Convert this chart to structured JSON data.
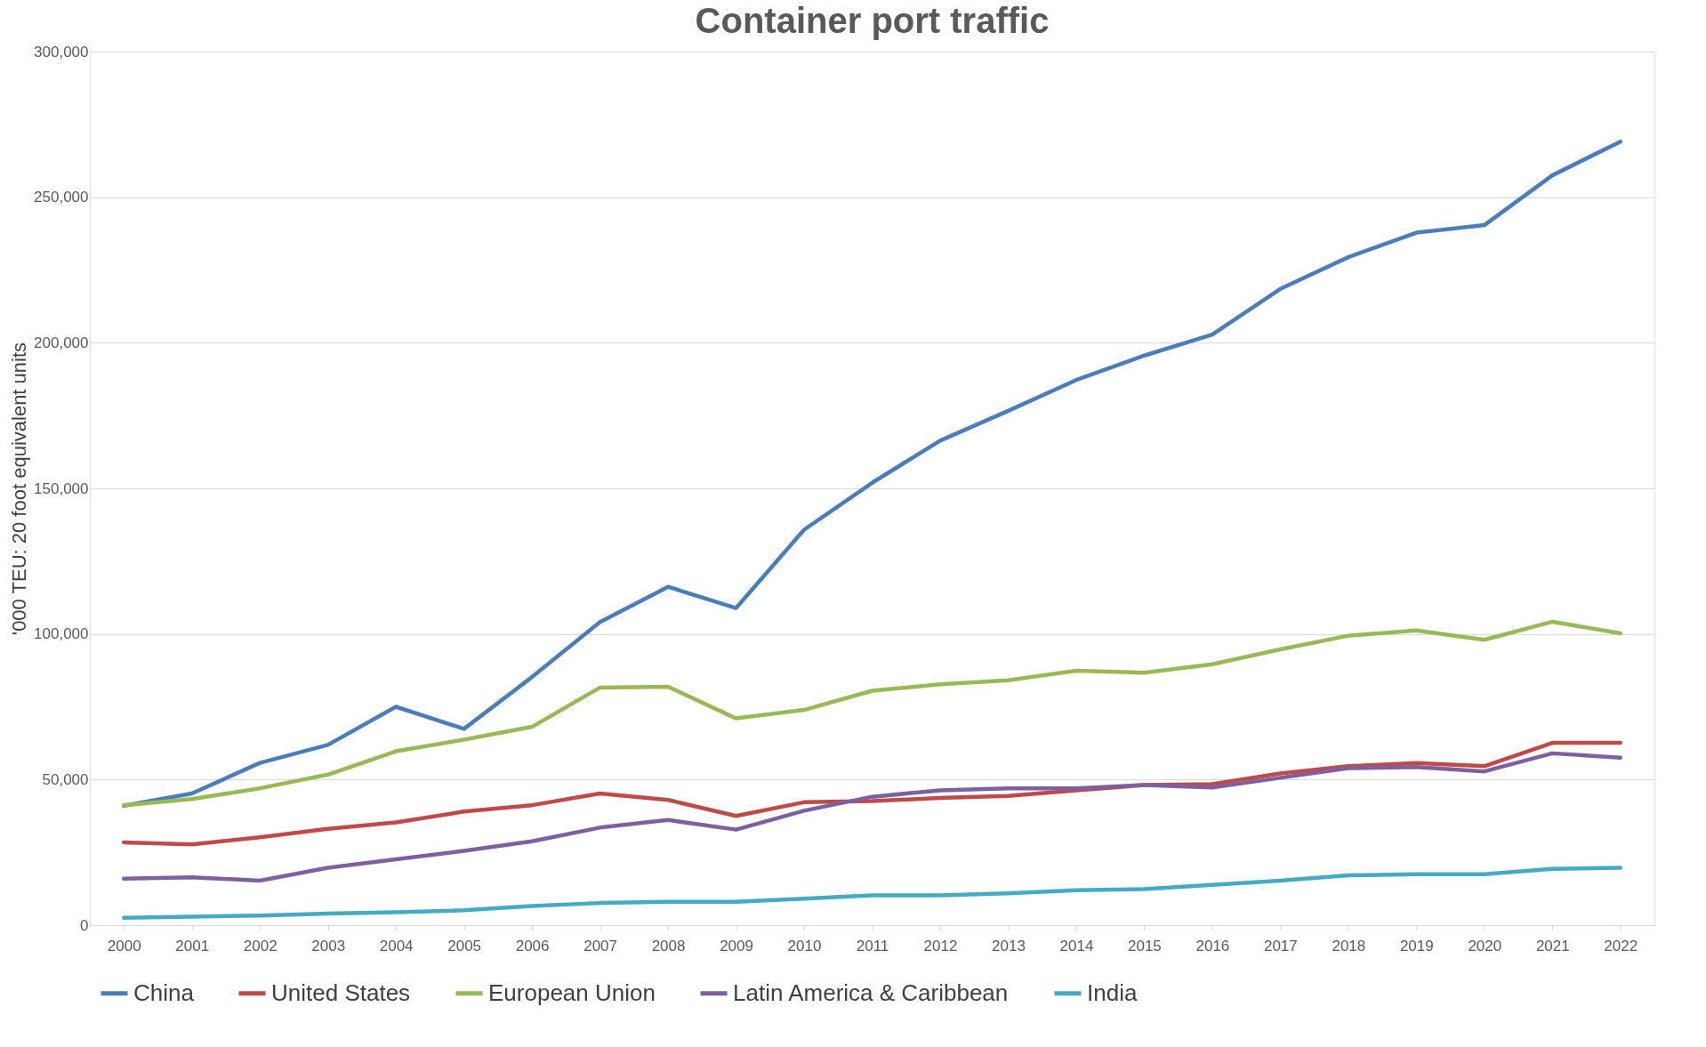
{
  "chart_data": {
    "type": "line",
    "title": "Container port traffic",
    "ylabel": "'000 TEU: 20 foot equivalent units",
    "categories": [
      "2000",
      "2001",
      "2002",
      "2003",
      "2004",
      "2005",
      "2006",
      "2007",
      "2008",
      "2009",
      "2010",
      "2011",
      "2012",
      "2013",
      "2014",
      "2015",
      "2016",
      "2017",
      "2018",
      "2019",
      "2020",
      "2021",
      "2022"
    ],
    "series": [
      {
        "name": "China",
        "color": "#4a7ebb",
        "values": [
          41000,
          45200,
          55700,
          61900,
          75000,
          67400,
          85200,
          104100,
          116200,
          108900,
          135800,
          151900,
          166400,
          176600,
          187200,
          195600,
          202800,
          218500,
          229400,
          237800,
          240400,
          257500,
          269100
        ]
      },
      {
        "name": "United States",
        "color": "#be4b48",
        "values": [
          28400,
          27700,
          30200,
          33100,
          35300,
          39000,
          41200,
          45200,
          43000,
          37500,
          42200,
          42600,
          43700,
          44400,
          46300,
          48100,
          48400,
          52100,
          54600,
          55700,
          54600,
          62600,
          62600
        ]
      },
      {
        "name": "European Union",
        "color": "#98b954",
        "values": [
          41200,
          43300,
          47000,
          51700,
          59700,
          63700,
          68100,
          81600,
          81900,
          71000,
          73900,
          80500,
          82700,
          84100,
          87400,
          86700,
          89600,
          94700,
          99400,
          101200,
          98000,
          104200,
          100200
        ]
      },
      {
        "name": "Latin America & Caribbean",
        "color": "#7d60a0",
        "values": [
          16000,
          16400,
          15300,
          19700,
          22600,
          25500,
          28800,
          33500,
          36100,
          32800,
          39300,
          44100,
          46300,
          47000,
          47000,
          48100,
          47300,
          50600,
          53900,
          54300,
          52800,
          59000,
          57500
        ]
      },
      {
        "name": "India",
        "color": "#46aac5",
        "values": [
          2500,
          2900,
          3300,
          4000,
          4400,
          5100,
          6600,
          7600,
          8000,
          8000,
          9100,
          10200,
          10200,
          10900,
          12000,
          12400,
          13800,
          15300,
          17100,
          17500,
          17500,
          19300,
          19700
        ]
      }
    ],
    "ylim": [
      0,
      300000
    ],
    "yticks": [
      0,
      {
        "value": 50000,
        "label": "50,000"
      },
      {
        "value": 100000,
        "label": "100,000"
      },
      {
        "value": 150000,
        "label": "150,000"
      },
      {
        "value": 200000,
        "label": "200,000"
      },
      {
        "value": 250000,
        "label": "250,000"
      },
      {
        "value": 300000,
        "label": "300,000"
      }
    ],
    "grid": "y",
    "legend": "bottom",
    "marker": "none",
    "line_style": "solid"
  }
}
